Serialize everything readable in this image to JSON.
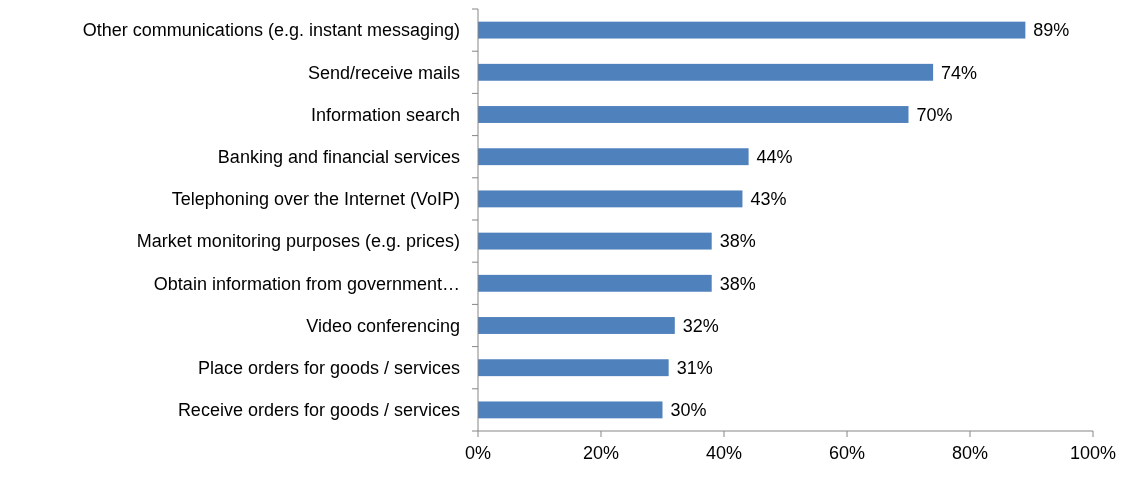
{
  "chart_data": {
    "type": "bar",
    "orientation": "horizontal",
    "categories": [
      "Other communications (e.g. instant messaging)",
      "Send/receive mails",
      "Information search",
      "Banking and financial services",
      "Telephoning over the Internet (VoIP)",
      "Market monitoring purposes (e.g. prices)",
      "Obtain information from government…",
      "Video conferencing",
      "Place orders for goods / services",
      "Receive orders for goods / services"
    ],
    "values": [
      89,
      74,
      70,
      44,
      43,
      38,
      38,
      32,
      31,
      30
    ],
    "value_labels": [
      "89%",
      "74%",
      "70%",
      "44%",
      "43%",
      "38%",
      "38%",
      "32%",
      "31%",
      "30%"
    ],
    "color": "#4f81bd",
    "xlim": [
      0,
      100
    ],
    "xticks": [
      {
        "value": 0,
        "label": "0%"
      },
      {
        "value": 20,
        "label": "20%"
      },
      {
        "value": 40,
        "label": "40%"
      },
      {
        "value": 60,
        "label": "60%"
      },
      {
        "value": 80,
        "label": "80%"
      },
      {
        "value": 100,
        "label": "100%"
      }
    ],
    "grid": false
  }
}
